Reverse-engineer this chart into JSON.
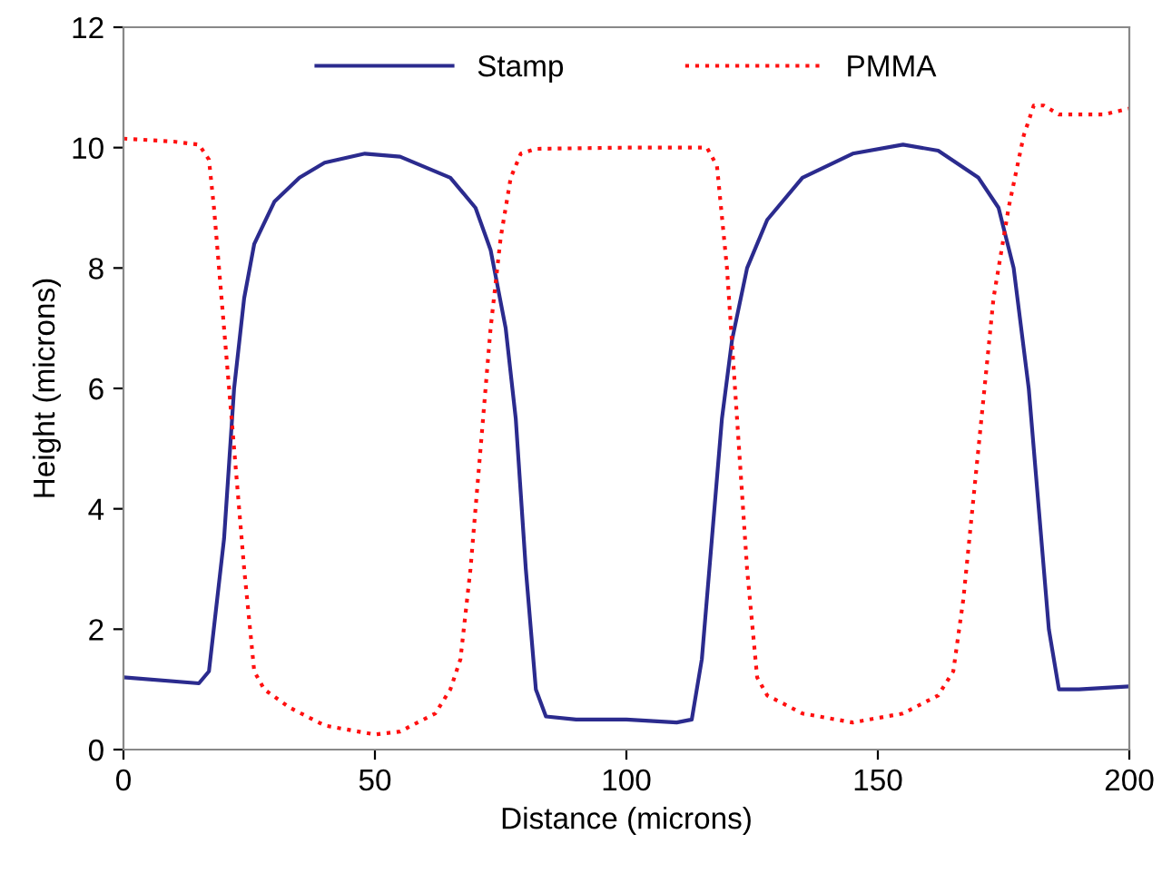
{
  "chart_data": {
    "type": "line",
    "xlabel": "Distance (microns)",
    "ylabel": "Height (microns)",
    "xlim": [
      0,
      200
    ],
    "ylim": [
      0,
      12
    ],
    "xticks": [
      0,
      50,
      100,
      150,
      200
    ],
    "yticks": [
      0,
      2,
      4,
      6,
      8,
      10,
      12
    ],
    "grid": false,
    "legend": "top",
    "marker": "none",
    "series": [
      {
        "name": "Stamp",
        "color": "#2b2b8e",
        "line_style": "solid",
        "x": [
          0,
          15,
          17,
          20,
          22,
          24,
          26,
          30,
          35,
          40,
          48,
          55,
          65,
          70,
          73,
          76,
          78,
          80,
          82,
          84,
          90,
          100,
          110,
          113,
          115,
          117,
          119,
          121,
          124,
          128,
          135,
          145,
          155,
          162,
          170,
          174,
          177,
          180,
          182,
          184,
          186,
          190,
          200
        ],
        "values": [
          1.2,
          1.1,
          1.3,
          3.5,
          6,
          7.5,
          8.4,
          9.1,
          9.5,
          9.75,
          9.9,
          9.85,
          9.5,
          9.0,
          8.3,
          7,
          5.5,
          3,
          1.0,
          0.55,
          0.5,
          0.5,
          0.45,
          0.5,
          1.5,
          3.5,
          5.5,
          6.8,
          8.0,
          8.8,
          9.5,
          9.9,
          10.05,
          9.95,
          9.5,
          9,
          8,
          6,
          4,
          2,
          1.0,
          1.0,
          1.05
        ]
      },
      {
        "name": "PMMA",
        "color": "#ff1010",
        "line_style": "dotted",
        "x": [
          0,
          10,
          15,
          17,
          18,
          20,
          22,
          24,
          26,
          28,
          33,
          40,
          50,
          55,
          62,
          65,
          67,
          69,
          71,
          73,
          75,
          77,
          79,
          82,
          100,
          116,
          118,
          120,
          122,
          124,
          126,
          128,
          135,
          145,
          155,
          162,
          165,
          167,
          170,
          173,
          176,
          179,
          181,
          183,
          186,
          195,
          200
        ],
        "values": [
          10.15,
          10.1,
          10.05,
          9.8,
          9,
          7,
          5,
          3,
          1.3,
          1.0,
          0.7,
          0.4,
          0.25,
          0.3,
          0.6,
          1.0,
          1.5,
          3,
          5,
          7,
          8.5,
          9.5,
          9.9,
          9.98,
          10.0,
          10.0,
          9.7,
          8,
          5.5,
          3,
          1.2,
          0.9,
          0.6,
          0.45,
          0.6,
          0.9,
          1.3,
          2.5,
          5,
          7.5,
          9,
          10.2,
          10.7,
          10.7,
          10.55,
          10.55,
          10.65
        ]
      }
    ]
  }
}
